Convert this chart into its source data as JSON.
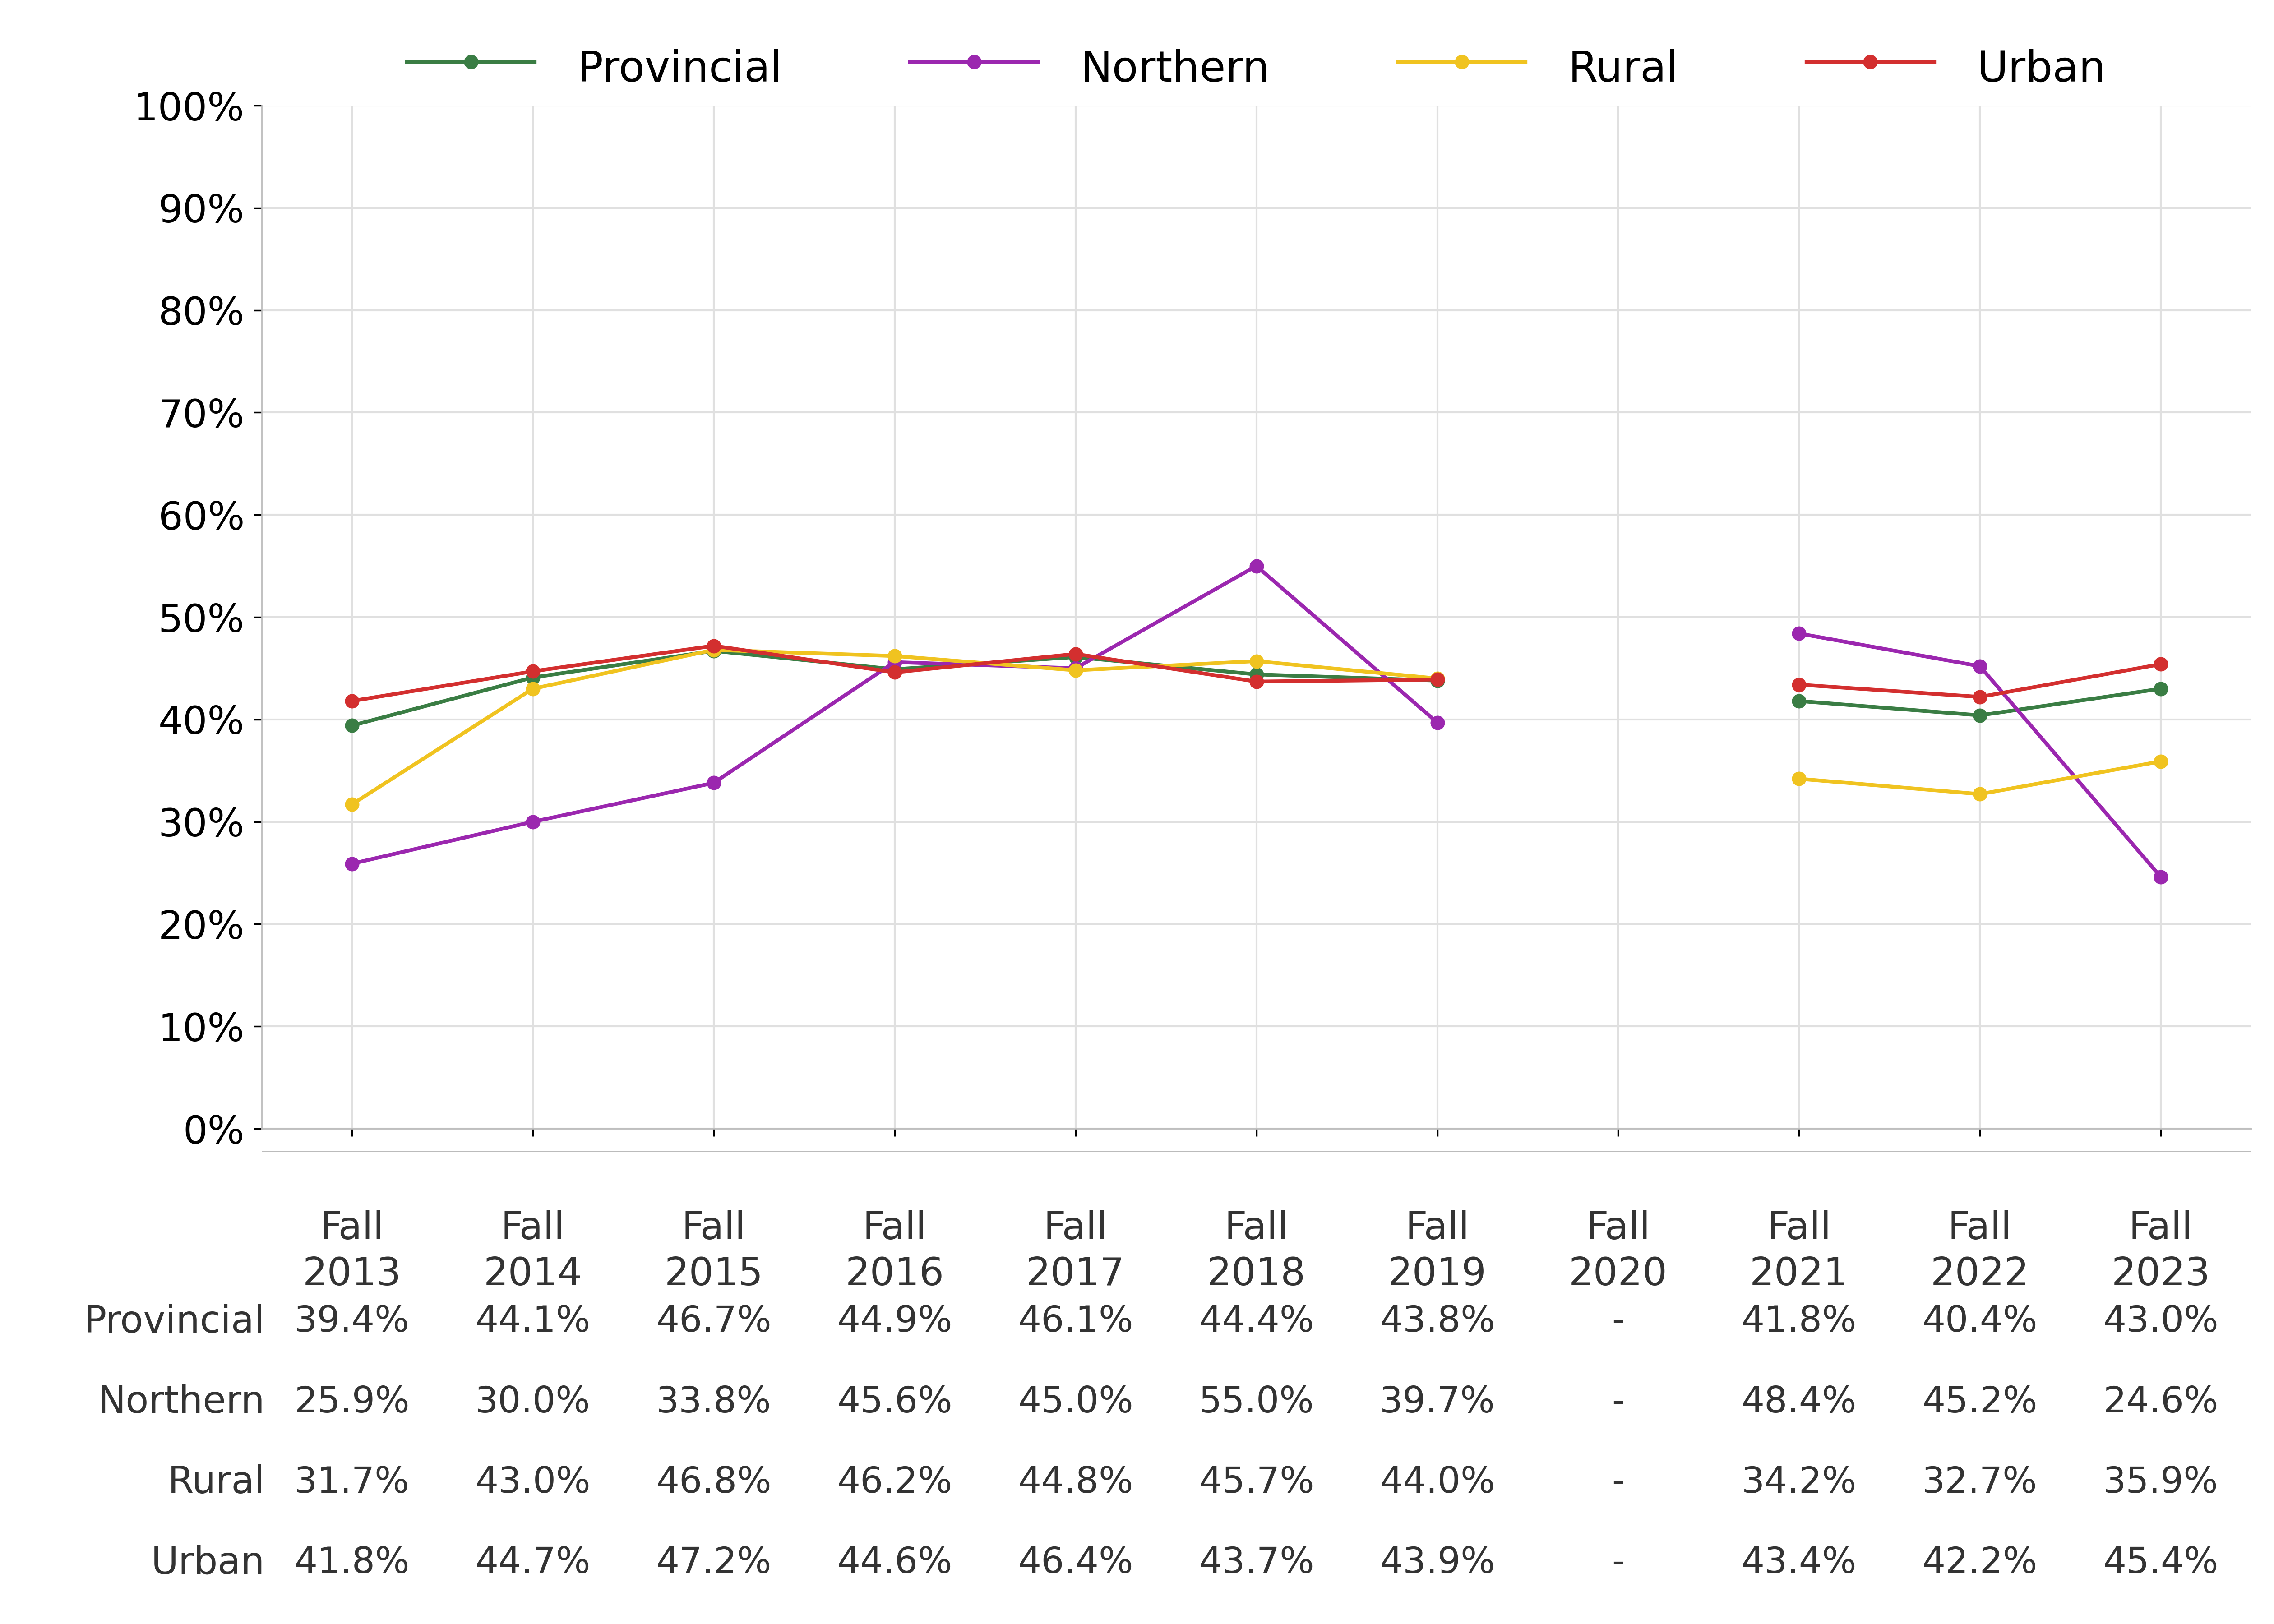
{
  "x_labels": [
    "Fall\n2013",
    "Fall\n2014",
    "Fall\n2015",
    "Fall\n2016",
    "Fall\n2017",
    "Fall\n2018",
    "Fall\n2019",
    "Fall\n2020",
    "Fall\n2021",
    "Fall\n2022",
    "Fall\n2023"
  ],
  "x_positions": [
    0,
    1,
    2,
    3,
    4,
    5,
    6,
    7,
    8,
    9,
    10
  ],
  "series": {
    "Provincial": {
      "values": [
        39.4,
        44.1,
        46.7,
        44.9,
        46.1,
        44.4,
        43.8,
        null,
        41.8,
        40.4,
        43.0
      ],
      "color": "#3a7d44",
      "marker": "o",
      "linewidth": 6.0,
      "markersize": 22
    },
    "Northern": {
      "values": [
        25.9,
        30.0,
        33.8,
        45.6,
        45.0,
        55.0,
        39.7,
        null,
        48.4,
        45.2,
        24.6
      ],
      "color": "#9b27af",
      "marker": "o",
      "linewidth": 6.0,
      "markersize": 22
    },
    "Rural": {
      "values": [
        31.7,
        43.0,
        46.8,
        46.2,
        44.8,
        45.7,
        44.0,
        null,
        34.2,
        32.7,
        35.9
      ],
      "color": "#f0c320",
      "marker": "o",
      "linewidth": 6.0,
      "markersize": 22
    },
    "Urban": {
      "values": [
        41.8,
        44.7,
        47.2,
        44.6,
        46.4,
        43.7,
        43.9,
        null,
        43.4,
        42.2,
        45.4
      ],
      "color": "#d32f2f",
      "marker": "o",
      "linewidth": 6.0,
      "markersize": 22
    }
  },
  "table_rows": {
    "Provincial": [
      "39.4%",
      "44.1%",
      "46.7%",
      "44.9%",
      "46.1%",
      "44.4%",
      "43.8%",
      "-",
      "41.8%",
      "40.4%",
      "43.0%"
    ],
    "Northern": [
      "25.9%",
      "30.0%",
      "33.8%",
      "45.6%",
      "45.0%",
      "55.0%",
      "39.7%",
      "-",
      "48.4%",
      "45.2%",
      "24.6%"
    ],
    "Rural": [
      "31.7%",
      "43.0%",
      "46.8%",
      "46.2%",
      "44.8%",
      "45.7%",
      "44.0%",
      "-",
      "34.2%",
      "32.7%",
      "35.9%"
    ],
    "Urban": [
      "41.8%",
      "44.7%",
      "47.2%",
      "44.6%",
      "46.4%",
      "43.7%",
      "43.9%",
      "-",
      "43.4%",
      "42.2%",
      "45.4%"
    ]
  },
  "ylim": [
    0,
    100
  ],
  "yticks": [
    0,
    10,
    20,
    30,
    40,
    50,
    60,
    70,
    80,
    90,
    100
  ],
  "background_color": "#ffffff",
  "grid_color": "#e0e0e0",
  "legend_order": [
    "Provincial",
    "Northern",
    "Rural",
    "Urban"
  ],
  "table_row_order": [
    "Provincial",
    "Northern",
    "Rural",
    "Urban"
  ],
  "tick_fontsize": 62,
  "legend_fontsize": 68,
  "table_fontsize": 58,
  "table_label_fontsize": 60
}
